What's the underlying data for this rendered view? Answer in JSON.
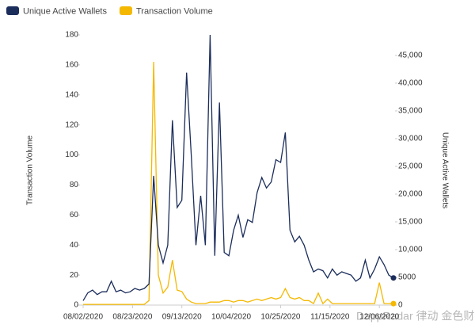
{
  "chart_data": {
    "type": "line",
    "y_label": "Transaction Volume",
    "y2_label": "Unique Active Wallets",
    "watermark": "DappRadar 律动 金色财经",
    "legend": "top-left",
    "x": [
      "08/02/2020",
      "08/04/2020",
      "08/06/2020",
      "08/08/2020",
      "08/10/2020",
      "08/12/2020",
      "08/14/2020",
      "08/16/2020",
      "08/18/2020",
      "08/20/2020",
      "08/22/2020",
      "08/24/2020",
      "08/26/2020",
      "08/28/2020",
      "08/30/2020",
      "09/01/2020",
      "09/03/2020",
      "09/05/2020",
      "09/07/2020",
      "09/09/2020",
      "09/11/2020",
      "09/13/2020",
      "09/15/2020",
      "09/17/2020",
      "09/19/2020",
      "09/21/2020",
      "09/23/2020",
      "09/25/2020",
      "09/27/2020",
      "09/29/2020",
      "10/01/2020",
      "10/03/2020",
      "10/05/2020",
      "10/07/2020",
      "10/09/2020",
      "10/11/2020",
      "10/13/2020",
      "10/15/2020",
      "10/17/2020",
      "10/19/2020",
      "10/21/2020",
      "10/23/2020",
      "10/25/2020",
      "10/27/2020",
      "10/29/2020",
      "10/31/2020",
      "11/02/2020",
      "11/04/2020",
      "11/06/2020",
      "11/08/2020",
      "11/10/2020",
      "11/12/2020",
      "11/14/2020",
      "11/16/2020",
      "11/18/2020",
      "11/20/2020",
      "11/22/2020",
      "11/24/2020",
      "11/26/2020",
      "11/28/2020",
      "11/30/2020",
      "12/02/2020",
      "12/04/2020",
      "12/06/2020",
      "12/08/2020",
      "12/10/2020",
      "12/12/2020"
    ],
    "series": [
      {
        "name": "Unique Active Wallets",
        "color": "#1b2d5b",
        "axis": "y2",
        "values": [
          800,
          2200,
          2700,
          1900,
          2400,
          2400,
          4300,
          2400,
          2700,
          2200,
          2400,
          3000,
          2700,
          3000,
          3800,
          23300,
          10800,
          7600,
          10800,
          33300,
          17600,
          18900,
          41900,
          27000,
          10800,
          19700,
          10800,
          48700,
          8900,
          36500,
          9500,
          8900,
          13500,
          16200,
          12200,
          15400,
          14900,
          20300,
          23000,
          21100,
          22200,
          26200,
          25700,
          31100,
          13500,
          11400,
          12400,
          10800,
          8100,
          6000,
          6500,
          6200,
          4900,
          6500,
          5400,
          6000,
          5700,
          5400,
          4300,
          4900,
          8100,
          4900,
          6500,
          8700,
          7300,
          5400,
          4900
        ]
      },
      {
        "name": "Transaction Volume",
        "color": "#f5b800",
        "values": [
          0.5,
          0.5,
          0.5,
          0.5,
          0.5,
          0.5,
          0.5,
          0.5,
          0.5,
          0.5,
          0.5,
          0.5,
          0.5,
          0.5,
          3,
          162,
          20,
          8,
          12,
          30,
          10,
          9,
          4,
          2,
          1,
          1,
          1,
          2,
          2,
          2,
          3,
          3,
          2,
          3,
          3,
          2,
          3,
          4,
          3,
          4,
          5,
          4,
          5,
          11,
          5,
          4,
          5,
          3,
          3,
          1,
          8,
          1,
          4,
          1,
          1,
          1,
          1,
          1,
          1,
          1,
          1,
          1,
          1,
          15,
          1,
          1,
          1
        ]
      }
    ],
    "xlim": [
      "08/02/2020",
      "12/12/2020"
    ],
    "xticks": [
      "08/02/2020",
      "08/23/2020",
      "09/13/2020",
      "10/04/2020",
      "10/25/2020",
      "11/15/2020",
      "12/06/2020"
    ],
    "ylim": [
      0,
      180
    ],
    "yticks": [
      0,
      20,
      40,
      60,
      80,
      100,
      120,
      140,
      160,
      180
    ],
    "y2lim": [
      0,
      48700
    ],
    "y2ticks": [
      0,
      5000,
      {
        "value": 10000,
        "label": "10,000"
      },
      {
        "value": 15000,
        "label": "15,000"
      },
      {
        "value": 20000,
        "label": "20,000"
      },
      {
        "value": 25000,
        "label": "25,000"
      },
      {
        "value": 30000,
        "label": "30,000"
      },
      {
        "value": 35000,
        "label": "35,000"
      },
      {
        "value": 40000,
        "label": "40,000"
      },
      {
        "value": 45000,
        "label": "45,000"
      }
    ]
  }
}
